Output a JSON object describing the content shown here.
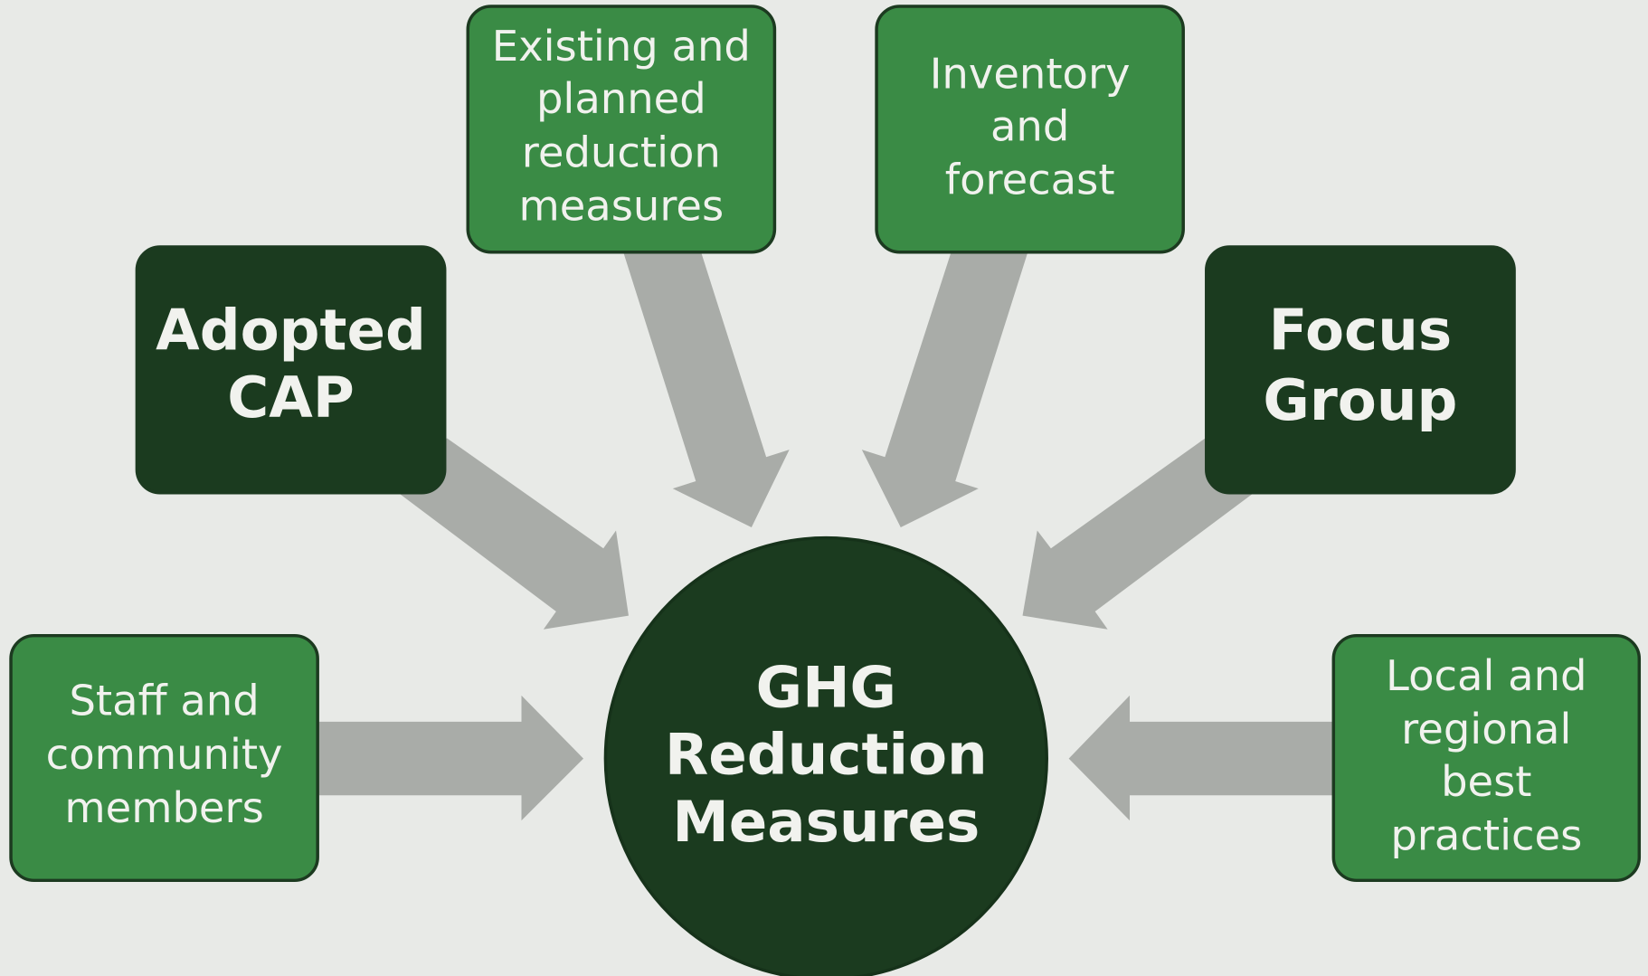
{
  "center": {
    "lines": [
      "GHG",
      "Reduction",
      "Measures"
    ]
  },
  "nodes": [
    {
      "lines": [
        "Staff and",
        "community",
        "members"
      ]
    },
    {
      "lines": [
        "Adopted",
        "CAP"
      ]
    },
    {
      "lines": [
        "Existing and",
        "planned",
        "reduction",
        "measures"
      ]
    },
    {
      "lines": [
        "Inventory",
        "and",
        "forecast"
      ]
    },
    {
      "lines": [
        "Focus",
        "Group"
      ]
    },
    {
      "lines": [
        "Local and",
        "regional",
        "best",
        "practices"
      ]
    }
  ]
}
